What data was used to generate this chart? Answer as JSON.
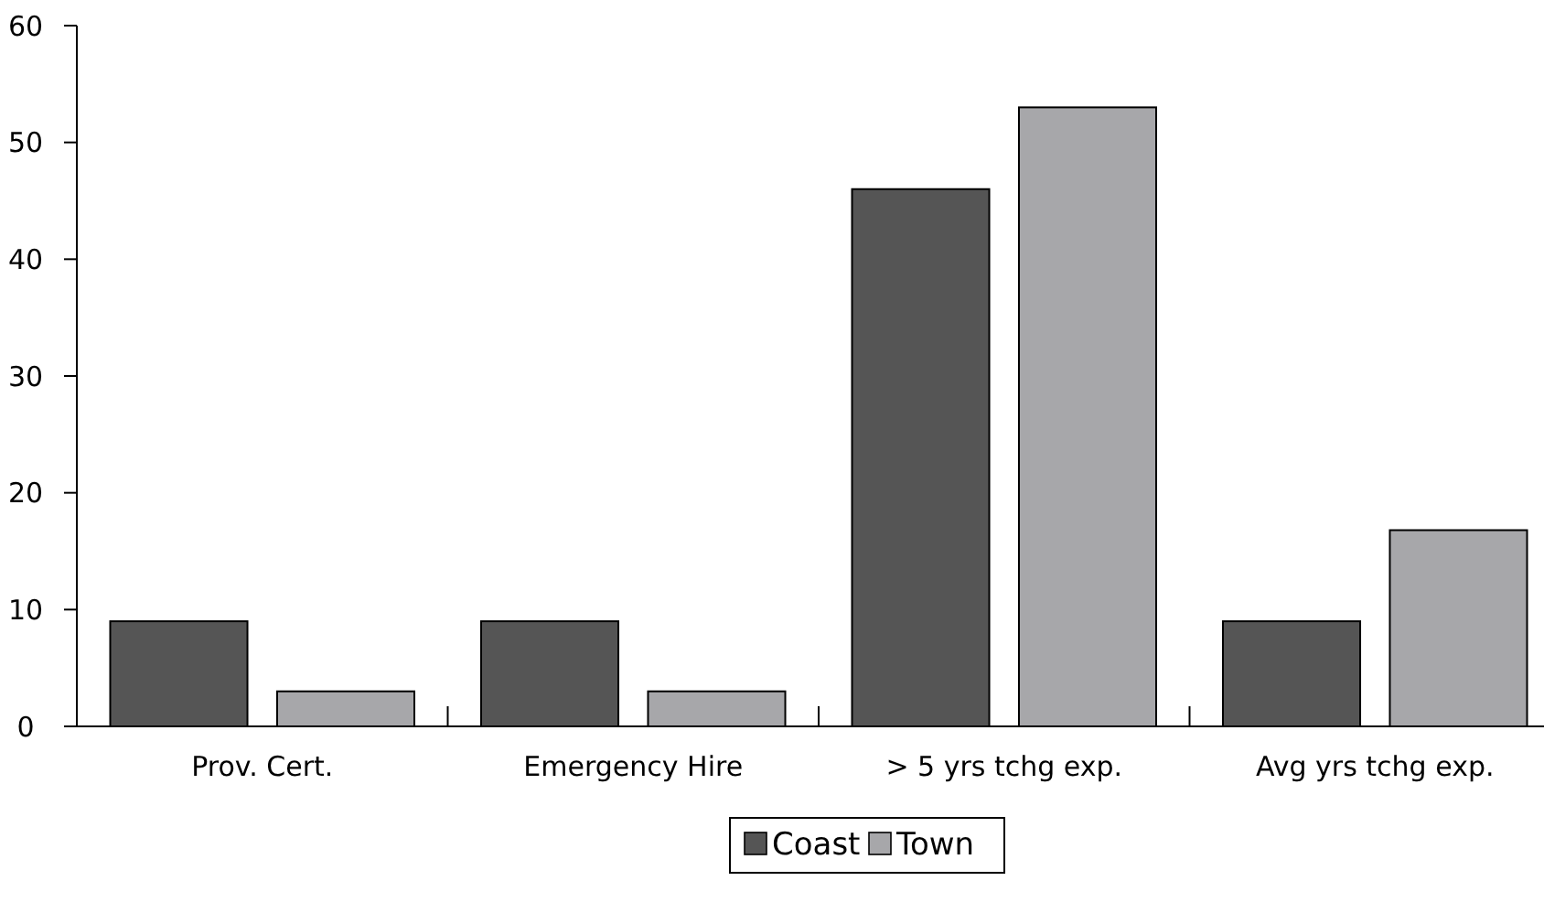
{
  "chart_data": {
    "type": "bar",
    "categories": [
      "Prov. Cert.",
      "Emergency Hire",
      "> 5 yrs tchg exp.",
      "Avg yrs tchg exp."
    ],
    "series": [
      {
        "name": "Coast",
        "color": "#555555",
        "values": [
          9,
          9,
          46,
          9
        ]
      },
      {
        "name": "Town",
        "color": "#a7a7aa",
        "values": [
          3,
          3,
          53,
          16.8
        ]
      }
    ],
    "ylim": [
      0,
      60
    ],
    "yticks": [
      0,
      10,
      20,
      30,
      40,
      50,
      60
    ],
    "grid": false,
    "legend": "bottom"
  }
}
